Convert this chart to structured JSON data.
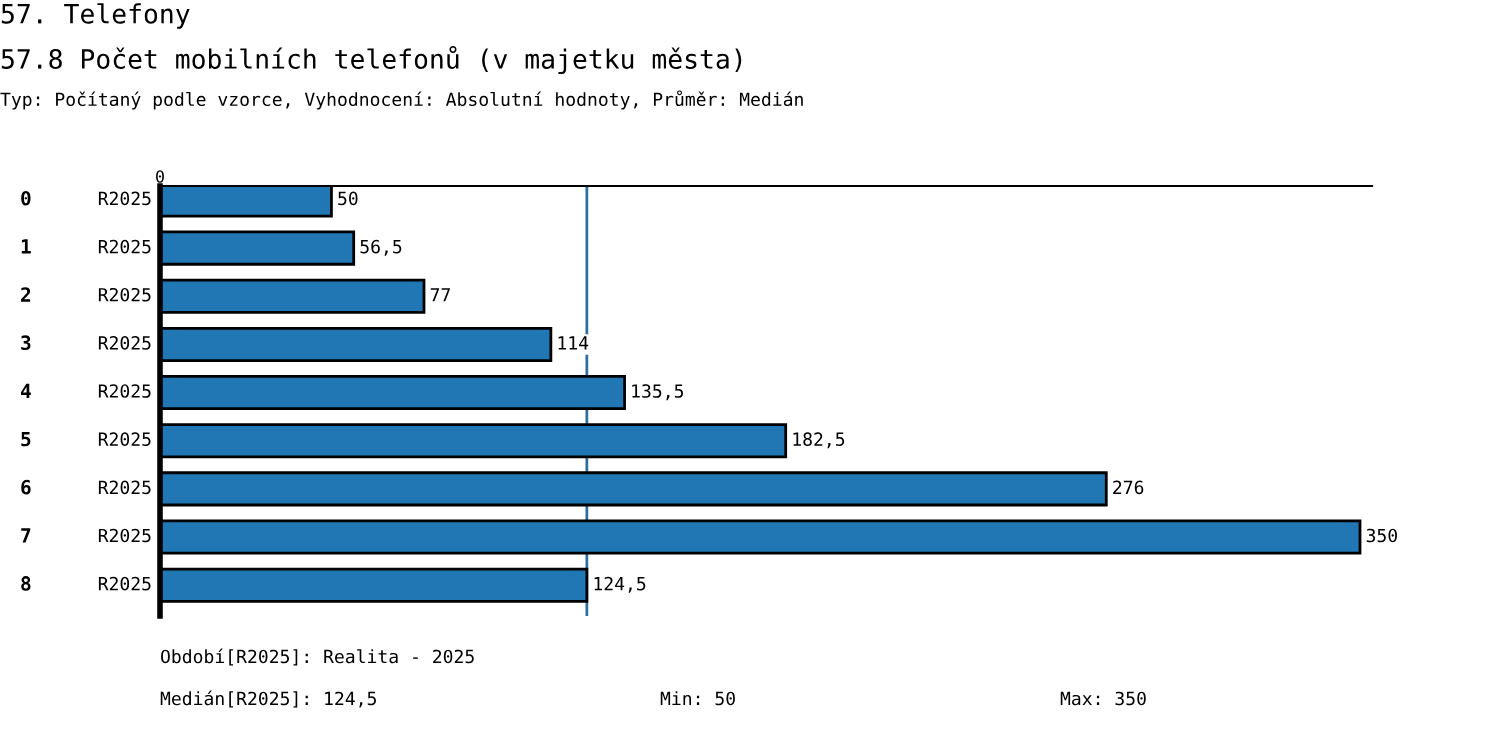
{
  "chart_data": {
    "type": "bar",
    "orientation": "horizontal",
    "title": "57. Telefony",
    "subtitle": "57.8 Počet mobilních telefonů (v majetku města)",
    "categories": [
      "0",
      "1",
      "2",
      "3",
      "4",
      "5",
      "6",
      "7",
      "8"
    ],
    "series": [
      {
        "name": "R2025",
        "color": "#2077b4",
        "values": [
          50,
          56.5,
          77,
          114,
          135.5,
          182.5,
          276,
          350,
          124.5
        ],
        "value_labels": [
          "50",
          "56,5",
          "77",
          "114",
          "135,5",
          "182,5",
          "276",
          "350",
          "124,5"
        ]
      }
    ],
    "ref_lines": [
      {
        "axis": "x",
        "value": 124.5,
        "color": "#2f6f9f"
      }
    ],
    "annotations": [
      "Typ: Počítaný podle vzorce, Vyhodnocení: Absolutní hodnoty, Průměr: Medián",
      {
        "text": "0",
        "x": 0
      },
      "Období[R2025]: Realita - 2025",
      "Medián[R2025]: 124,5",
      "Min: 50",
      "Max: 350"
    ]
  }
}
